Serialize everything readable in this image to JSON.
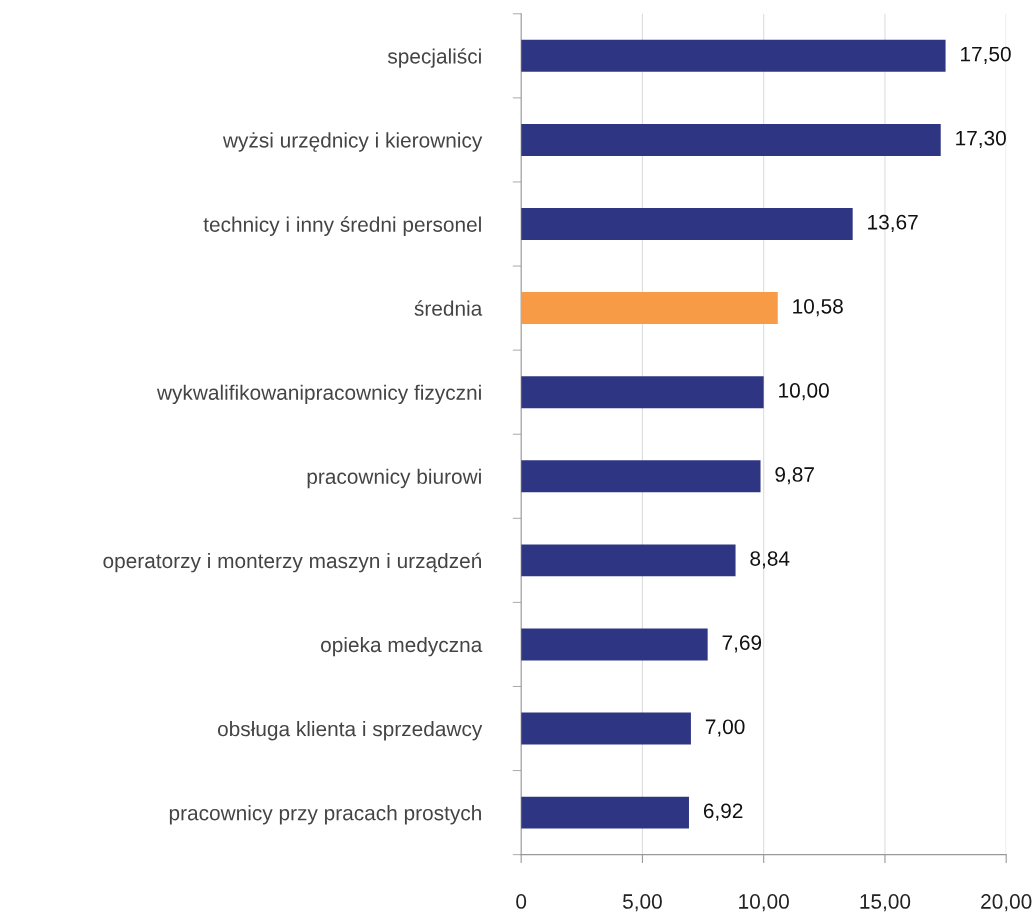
{
  "chart_data": {
    "type": "bar",
    "orientation": "horizontal",
    "categories": [
      "specjaliści",
      "wyżsi urzędnicy i kierownicy",
      "technicy i inny średni personel",
      "średnia",
      "wykwalifikowanipracownicy fizyczni",
      "pracownicy biurowi",
      "operatorzy i monterzy maszyn i urządzeń",
      "opieka medyczna",
      "obsługa klienta i sprzedawcy",
      "pracownicy przy pracach prostych"
    ],
    "values": [
      17.5,
      17.3,
      13.67,
      10.58,
      10.0,
      9.87,
      8.84,
      7.69,
      7.0,
      6.92
    ],
    "colors": [
      "#2e3683",
      "#2e3683",
      "#2e3683",
      "#f79b46",
      "#2e3683",
      "#2e3683",
      "#2e3683",
      "#2e3683",
      "#2e3683",
      "#2e3683"
    ],
    "value_labels": [
      "17,50",
      "17,30",
      "13,67",
      "10,58",
      "10,00",
      "9,87",
      "8,84",
      "7,69",
      "7,00",
      "6,92"
    ],
    "xlim": [
      0,
      20
    ],
    "xticks": [
      0,
      {
        "value": 5,
        "label": "5,00"
      },
      {
        "value": 10,
        "label": "10,00"
      },
      {
        "value": 15,
        "label": "15,00"
      },
      {
        "value": 20,
        "label": "20,00"
      }
    ],
    "grid": "x",
    "legend": false
  }
}
